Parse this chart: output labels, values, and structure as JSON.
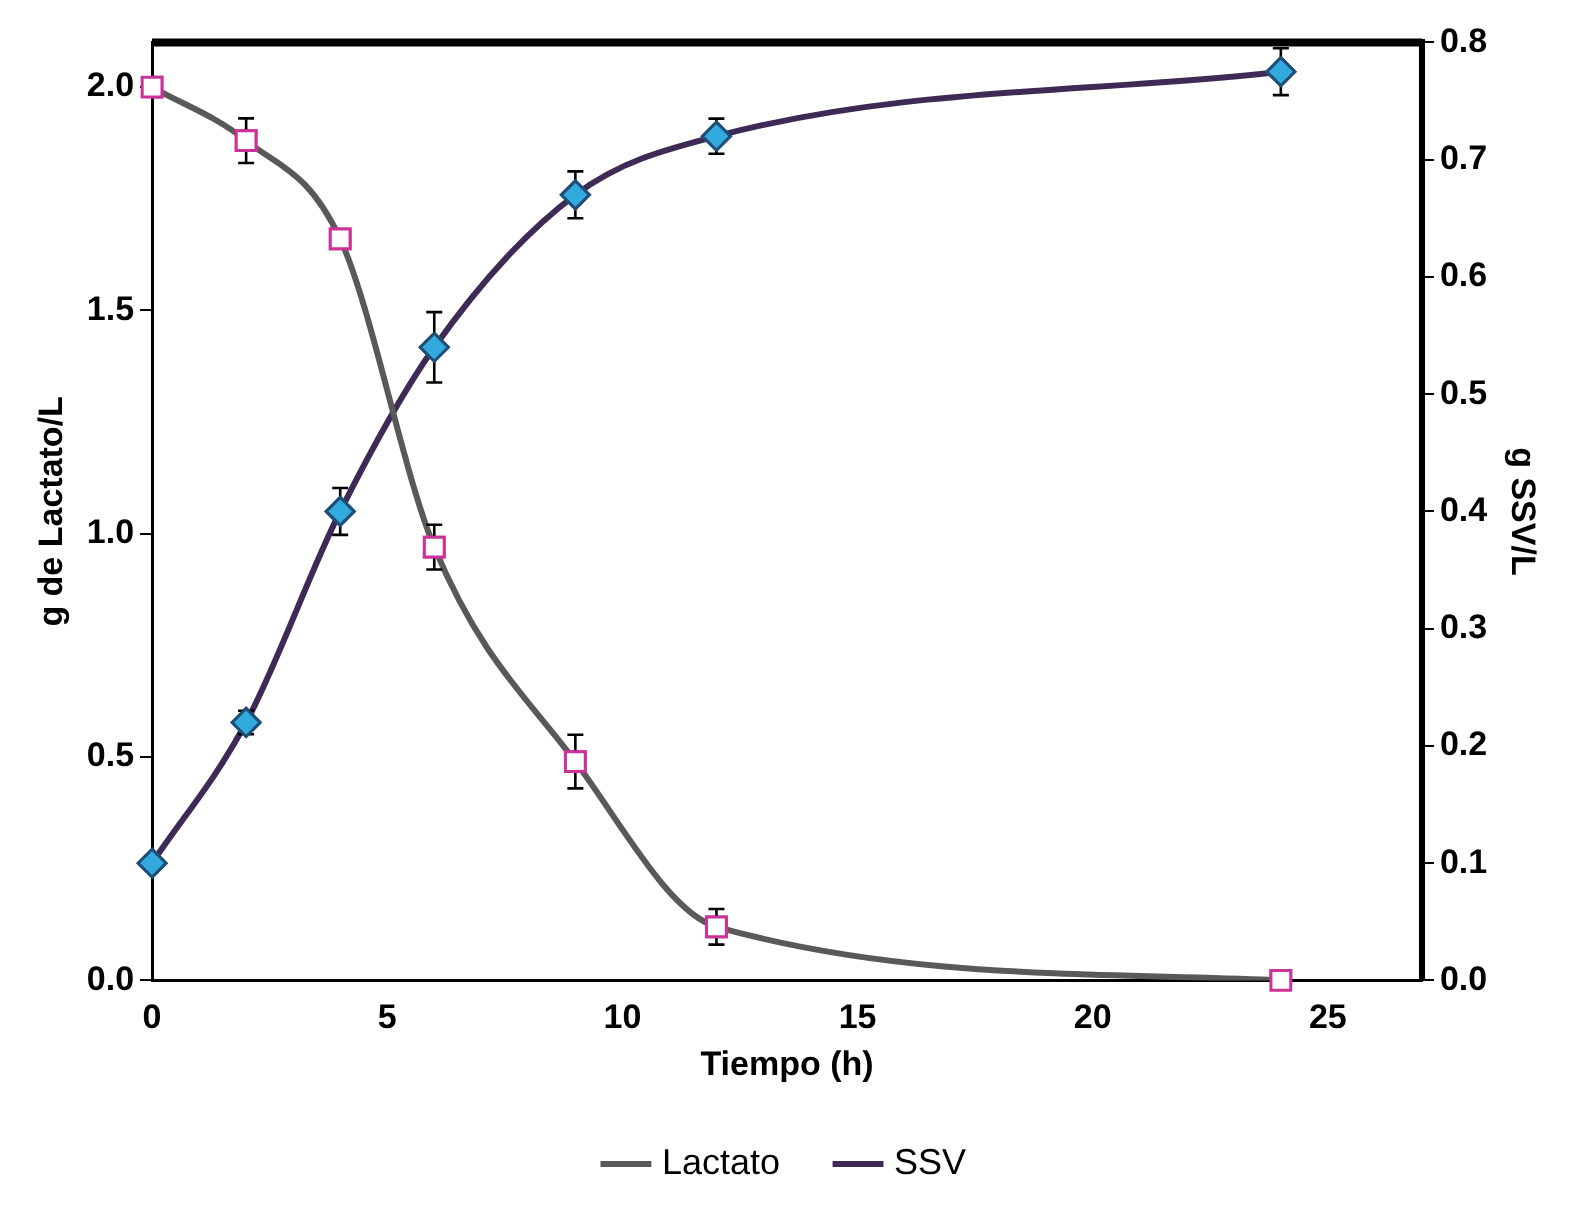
{
  "chart_data": {
    "type": "line",
    "xlabel": "Tiempo (h)",
    "ylabel": "g de Lactato/L",
    "y2label": "g SSV/L",
    "x": [
      0,
      2,
      4,
      6,
      9,
      12,
      24
    ],
    "xlim": [
      0,
      27
    ],
    "xticks": [
      0,
      5,
      10,
      15,
      20,
      25
    ],
    "ylim": [
      0,
      2.1
    ],
    "yticks": [
      {
        "value": 0,
        "label": "0.0"
      },
      {
        "value": 0.5,
        "label": "0.5"
      },
      {
        "value": 1,
        "label": "1.0"
      },
      {
        "value": 1.5,
        "label": "1.5"
      },
      {
        "value": 2,
        "label": "2.0"
      }
    ],
    "y2lim": [
      0,
      0.8
    ],
    "y2ticks": [
      {
        "value": 0,
        "label": "0.0"
      },
      {
        "value": 0.1,
        "label": "0.1"
      },
      {
        "value": 0.2,
        "label": "0.2"
      },
      {
        "value": 0.3,
        "label": "0.3"
      },
      {
        "value": 0.4,
        "label": "0.4"
      },
      {
        "value": 0.5,
        "label": "0.5"
      },
      {
        "value": 0.6,
        "label": "0.6"
      },
      {
        "value": 0.7,
        "label": "0.7"
      },
      {
        "value": 0.8,
        "label": "0.8"
      }
    ],
    "grid": false,
    "legend": "bottom",
    "series": [
      {
        "name": "Lactato",
        "color": "#595959",
        "colors": [
          "#cc3399",
          "#cc3399",
          "#cc3399",
          "#cc3399",
          "#cc3399",
          "#cc3399",
          "#cc3399"
        ],
        "marker": "square",
        "values": [
          2.0,
          1.88,
          1.66,
          0.97,
          0.49,
          0.12,
          0.0
        ],
        "errors": [
          null,
          0.05,
          null,
          0.05,
          0.06,
          0.04,
          null
        ]
      },
      {
        "name": "SSV",
        "color": "#3d2b56",
        "colors": [
          "#33aadd",
          "#33aadd",
          "#33aadd",
          "#33aadd",
          "#33aadd",
          "#33aadd",
          "#33aadd"
        ],
        "marker": "diamond",
        "axis": "y2",
        "values": [
          0.1,
          0.22,
          0.4,
          0.54,
          0.67,
          0.72,
          0.775
        ],
        "errors": [
          null,
          0.01,
          0.02,
          0.03,
          0.02,
          0.015,
          0.02
        ]
      }
    ]
  }
}
